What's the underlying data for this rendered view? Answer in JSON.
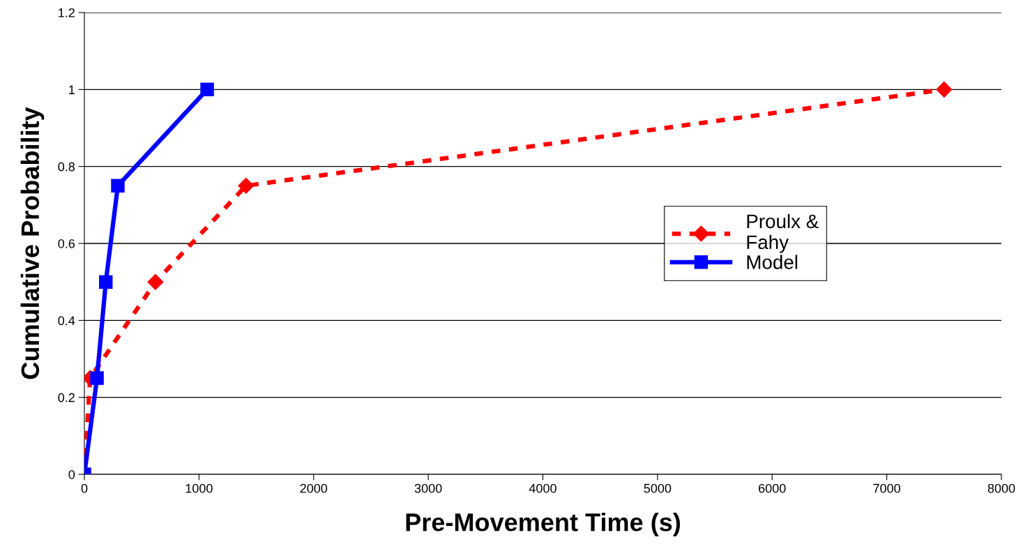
{
  "chart_data": {
    "type": "line",
    "xlabel": "Pre-Movement Time (s)",
    "ylabel": "Cumulative Probability",
    "xlim": [
      0,
      8000
    ],
    "xticks": [
      0,
      1000,
      2000,
      3000,
      4000,
      5000,
      6000,
      7000,
      8000
    ],
    "ylim": [
      0,
      1.2
    ],
    "yticks": [
      0,
      0.2,
      0.4,
      0.6,
      0.8,
      1,
      1.2
    ],
    "grid": "y",
    "legend": "right",
    "series": [
      {
        "name": "Proulx &\nFahy",
        "color": "#ff0000",
        "marker": "diamond",
        "line_style": "dashed",
        "x": [
          0,
          50,
          620,
          1410,
          7500
        ],
        "values": [
          0,
          0.25,
          0.5,
          0.75,
          1
        ]
      },
      {
        "name": "Model",
        "color": "#0000ff",
        "marker": "square",
        "line_style": "solid",
        "x": [
          0,
          110,
          187,
          292,
          1071
        ],
        "values": [
          0,
          0.25,
          0.5,
          0.75,
          1
        ]
      }
    ]
  }
}
